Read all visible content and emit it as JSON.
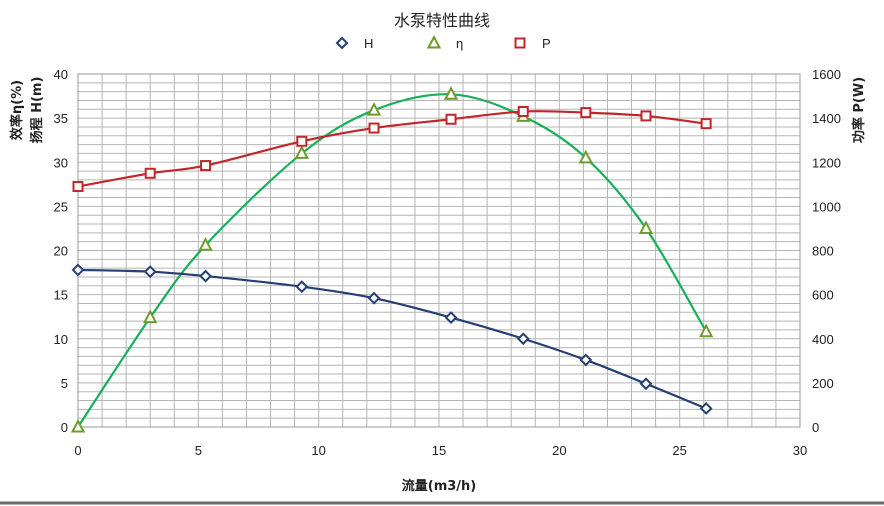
{
  "chart_data": {
    "type": "line",
    "title": "水泵特性曲线",
    "xlabel": "流量(m3/h)",
    "ylabel_left_1": "效率η(%)",
    "ylabel_left_2": "扬程 H(m)",
    "ylabel_right": "功率 P(W)",
    "xlim": [
      0,
      30
    ],
    "ylim_left": [
      0,
      40
    ],
    "ylim_right": [
      0,
      1600
    ],
    "x_ticks": [
      "0",
      "5",
      "10",
      "15",
      "20",
      "25",
      "30"
    ],
    "y_left_ticks": [
      "0",
      "5",
      "10",
      "15",
      "20",
      "25",
      "30",
      "35",
      "40"
    ],
    "y_right_ticks": [
      "0",
      "200",
      "400",
      "600",
      "800",
      "1000",
      "1200",
      "1400",
      "1600"
    ],
    "grid": true,
    "legend_position": "top-center",
    "series": [
      {
        "name": "H",
        "axis": "left",
        "color": "#243f73",
        "marker": "diamond",
        "points": [
          [
            0,
            17.8
          ],
          [
            3,
            17.6
          ],
          [
            5.3,
            17.1
          ],
          [
            9.3,
            15.9
          ],
          [
            12.3,
            14.6
          ],
          [
            15.5,
            12.4
          ],
          [
            18.5,
            10.0
          ],
          [
            21.1,
            7.6
          ],
          [
            23.6,
            4.9
          ],
          [
            26.1,
            2.1
          ]
        ]
      },
      {
        "name": "η",
        "axis": "left",
        "color": "#6f9a2c",
        "line_color": "#17b05a",
        "marker": "triangle",
        "points": [
          [
            0,
            0
          ],
          [
            3,
            12.4
          ],
          [
            5.3,
            20.6
          ],
          [
            9.3,
            31.0
          ],
          [
            12.3,
            35.9
          ],
          [
            15.5,
            37.7
          ],
          [
            18.5,
            35.2
          ],
          [
            21.1,
            30.5
          ],
          [
            23.6,
            22.5
          ],
          [
            26.1,
            10.8
          ]
        ]
      },
      {
        "name": "P",
        "axis": "right",
        "color": "#c0262a",
        "marker": "square",
        "points": [
          [
            0,
            1090
          ],
          [
            3,
            1150
          ],
          [
            5.3,
            1185
          ],
          [
            9.3,
            1295
          ],
          [
            12.3,
            1355
          ],
          [
            15.5,
            1395
          ],
          [
            18.5,
            1430
          ],
          [
            21.1,
            1425
          ],
          [
            23.6,
            1410
          ],
          [
            26.1,
            1375
          ]
        ]
      }
    ]
  }
}
